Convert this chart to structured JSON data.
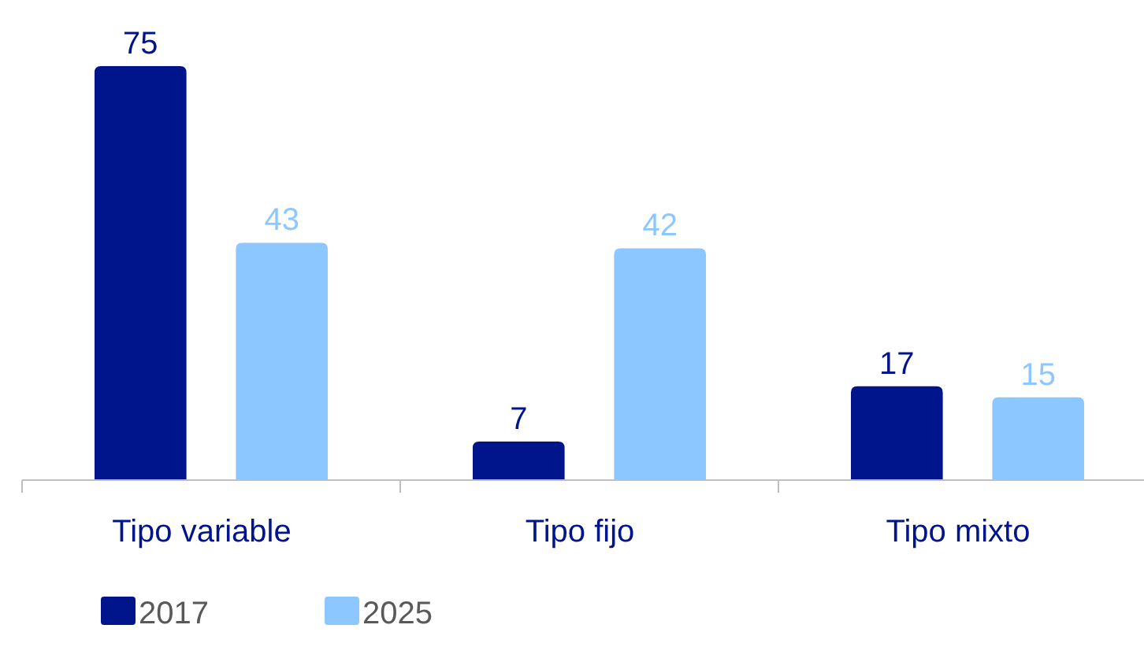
{
  "chart_data": {
    "type": "bar",
    "categories": [
      "Tipo variable",
      "Tipo fijo",
      "Tipo mixto"
    ],
    "series": [
      {
        "name": "2017",
        "color": "#00148c",
        "values": [
          75,
          7,
          17
        ]
      },
      {
        "name": "2025",
        "color": "#8cc8ff",
        "values": [
          43,
          42,
          15
        ]
      }
    ],
    "data_labels": true,
    "legend": "bottom left"
  }
}
